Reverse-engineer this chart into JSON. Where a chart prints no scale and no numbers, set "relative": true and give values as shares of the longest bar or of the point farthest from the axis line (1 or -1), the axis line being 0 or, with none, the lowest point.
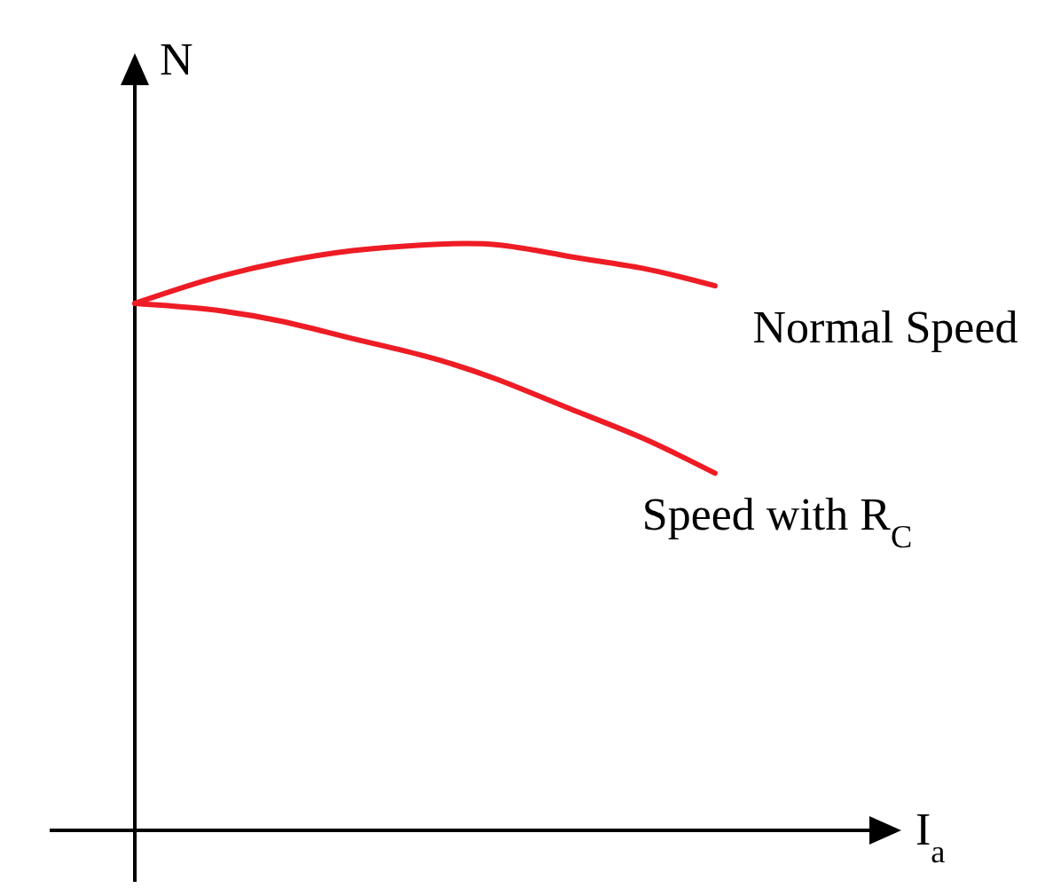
{
  "chart_data": {
    "type": "line",
    "relative": true,
    "xlabel": "I$_{a}$",
    "ylabel": "N",
    "categories": [
      null,
      null,
      null,
      null,
      null,
      null,
      null,
      null,
      null
    ],
    "series": [
      {
        "name": "Normal Speed",
        "color": "#ee1c25",
        "values": [
          0.9,
          0.94,
          0.97,
          0.99,
          1,
          1,
          0.98,
          0.96,
          0.93
        ]
      },
      {
        "name": "Speed with R$_{C}$",
        "color": "#ee1c25",
        "values": [
          0.9,
          0.89,
          0.87,
          0.84,
          0.81,
          0.77,
          0.72,
          0.67,
          0.61
        ]
      }
    ]
  }
}
